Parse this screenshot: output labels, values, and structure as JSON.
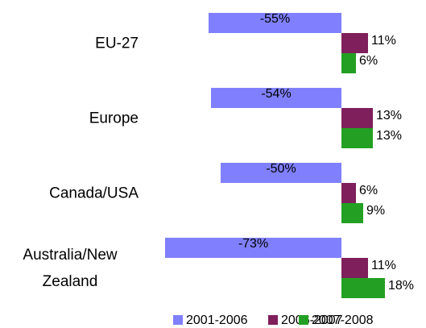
{
  "chart_data": {
    "type": "bar",
    "orientation": "horizontal",
    "categories": [
      "EU-27",
      "Europe",
      "Canada/USA",
      "Australia/New Zealand"
    ],
    "series": [
      {
        "name": "2001-2006",
        "color": "#8080ff",
        "values": [
          -55,
          -54,
          -50,
          -73
        ],
        "value_labels": [
          "-55%",
          "-54%",
          "-50%",
          "-73%"
        ]
      },
      {
        "name": "2006-2007",
        "color": "#7f1f5c",
        "values": [
          11,
          13,
          6,
          11
        ],
        "value_labels": [
          "11%",
          "13%",
          "6%",
          "11%"
        ]
      },
      {
        "name": "2007-2008",
        "color": "#23a023",
        "values": [
          6,
          13,
          9,
          18
        ],
        "value_labels": [
          "6%",
          "13%",
          "9%",
          "18%"
        ]
      }
    ],
    "legend": "bottom"
  }
}
